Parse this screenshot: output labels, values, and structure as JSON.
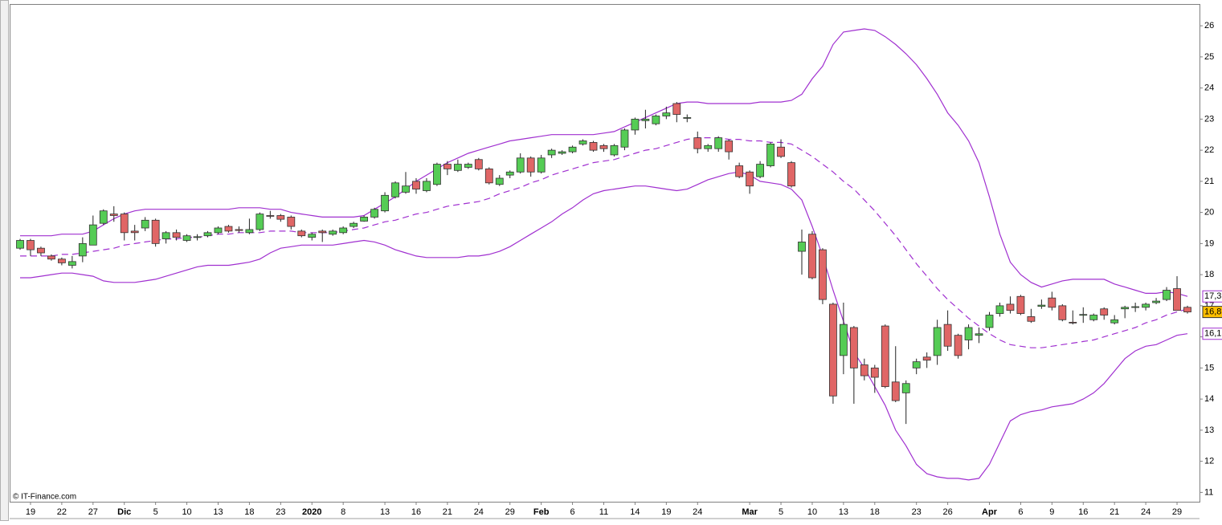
{
  "chart_data": {
    "type": "candlestick",
    "watermark": "© IT-Finance.com",
    "categories": [
      null,
      "19",
      null,
      null,
      "22",
      null,
      null,
      "27",
      null,
      null,
      "Dic",
      null,
      null,
      "5",
      null,
      null,
      "10",
      null,
      null,
      "13",
      null,
      null,
      "18",
      null,
      null,
      "23",
      null,
      null,
      "2020",
      null,
      null,
      "8",
      null,
      null,
      null,
      "13",
      null,
      null,
      "16",
      null,
      null,
      "21",
      null,
      null,
      "24",
      null,
      null,
      "29",
      null,
      null,
      "Feb",
      null,
      null,
      "6",
      null,
      null,
      "11",
      null,
      null,
      "14",
      null,
      null,
      "19",
      null,
      null,
      "24",
      null,
      null,
      null,
      null,
      "Mar",
      null,
      null,
      "5",
      null,
      null,
      "10",
      null,
      null,
      "13",
      null,
      null,
      "18",
      null,
      null,
      null,
      "23",
      null,
      null,
      "26",
      null,
      null,
      null,
      "Apr",
      null,
      null,
      "6",
      null,
      null,
      "9",
      null,
      null,
      "16",
      null,
      null,
      "21",
      null,
      null,
      "24",
      null,
      null,
      "29",
      null
    ],
    "open": [
      18.85,
      19.1,
      18.85,
      18.6,
      18.5,
      18.3,
      18.6,
      18.95,
      19.65,
      19.95,
      19.95,
      19.4,
      19.5,
      19.75,
      19.15,
      19.35,
      19.1,
      19.2,
      19.25,
      19.35,
      19.55,
      19.45,
      19.35,
      19.45,
      19.9,
      19.9,
      19.85,
      19.4,
      19.2,
      19.4,
      19.3,
      19.35,
      19.55,
      19.72,
      19.85,
      20.05,
      20.5,
      20.65,
      21.0,
      20.7,
      20.9,
      21.55,
      21.35,
      21.45,
      21.7,
      21.4,
      20.9,
      21.2,
      21.3,
      21.75,
      21.3,
      21.85,
      21.9,
      21.95,
      22.2,
      22.25,
      22.15,
      21.85,
      22.1,
      22.65,
      22.95,
      22.85,
      23.1,
      23.5,
      23.05,
      22.4,
      22.05,
      22.05,
      22.3,
      21.5,
      21.3,
      21.15,
      21.5,
      22.1,
      21.6,
      18.75,
      19.3,
      18.8,
      17.05,
      15.4,
      16.3,
      15.1,
      15.0,
      16.35,
      14.55,
      14.2,
      15.0,
      15.35,
      15.4,
      16.4,
      16.05,
      15.9,
      16.05,
      16.3,
      16.75,
      17.05,
      17.3,
      16.65,
      16.98,
      17.25,
      17.0,
      16.47,
      16.7,
      16.55,
      16.9,
      16.45,
      16.9,
      16.95,
      16.95,
      17.1,
      17.2,
      17.55,
      16.95
    ],
    "high": [
      19.15,
      19.15,
      18.9,
      18.65,
      18.55,
      18.6,
      19.2,
      19.9,
      20.1,
      20.2,
      20.0,
      19.6,
      19.85,
      19.8,
      19.4,
      19.45,
      19.3,
      19.3,
      19.4,
      19.55,
      19.6,
      19.55,
      19.8,
      20.0,
      20.05,
      19.95,
      19.9,
      19.45,
      19.35,
      19.45,
      19.45,
      19.55,
      19.7,
      19.9,
      20.15,
      20.65,
      21.0,
      21.3,
      21.1,
      21.1,
      21.6,
      21.65,
      21.7,
      21.6,
      21.75,
      21.45,
      21.2,
      21.35,
      21.9,
      21.8,
      21.85,
      22.05,
      22.0,
      22.15,
      22.35,
      22.3,
      22.2,
      22.2,
      22.7,
      23.05,
      23.3,
      23.15,
      23.4,
      23.55,
      23.15,
      22.6,
      22.2,
      22.45,
      22.35,
      21.6,
      21.35,
      21.65,
      22.25,
      22.35,
      21.65,
      19.45,
      19.4,
      18.85,
      17.1,
      17.1,
      16.35,
      15.3,
      15.1,
      16.4,
      15.7,
      14.6,
      15.3,
      15.5,
      16.55,
      16.85,
      16.1,
      16.4,
      16.3,
      16.8,
      17.1,
      17.3,
      17.35,
      16.9,
      17.2,
      17.45,
      17.05,
      16.85,
      16.95,
      16.75,
      16.95,
      16.7,
      17.0,
      17.1,
      17.1,
      17.25,
      17.6,
      17.95,
      17.0
    ],
    "low": [
      18.8,
      18.6,
      18.6,
      18.45,
      18.3,
      18.2,
      18.4,
      18.95,
      19.6,
      19.7,
      19.1,
      19.1,
      19.4,
      18.9,
      19.0,
      19.1,
      19.05,
      19.1,
      19.2,
      19.3,
      19.35,
      19.35,
      19.3,
      19.4,
      19.8,
      19.7,
      19.45,
      19.2,
      19.1,
      19.05,
      19.25,
      19.3,
      19.5,
      19.7,
      19.8,
      20.0,
      20.45,
      20.6,
      20.6,
      20.65,
      20.85,
      21.2,
      21.3,
      21.4,
      21.35,
      20.9,
      20.85,
      21.1,
      21.25,
      21.15,
      21.25,
      21.75,
      21.85,
      21.9,
      22.15,
      21.95,
      21.95,
      21.8,
      22.0,
      22.5,
      22.7,
      22.8,
      23.0,
      22.9,
      22.9,
      21.9,
      21.95,
      21.95,
      21.7,
      21.1,
      20.6,
      21.1,
      21.45,
      21.75,
      20.8,
      18.0,
      17.85,
      17.05,
      13.85,
      14.8,
      13.85,
      14.6,
      14.2,
      14.35,
      13.9,
      13.2,
      14.8,
      15.0,
      15.1,
      15.55,
      15.3,
      15.6,
      15.8,
      16.2,
      16.65,
      16.75,
      16.7,
      16.45,
      16.9,
      16.85,
      16.5,
      16.4,
      16.45,
      16.5,
      16.55,
      16.4,
      16.6,
      16.8,
      16.85,
      17.05,
      17.15,
      16.85,
      16.75
    ],
    "close": [
      19.1,
      18.8,
      18.7,
      18.5,
      18.38,
      18.42,
      19.0,
      19.6,
      20.05,
      19.9,
      19.35,
      19.35,
      19.75,
      19.0,
      19.35,
      19.2,
      19.25,
      19.22,
      19.35,
      19.5,
      19.4,
      19.42,
      19.45,
      19.95,
      19.88,
      19.78,
      19.55,
      19.25,
      19.3,
      19.35,
      19.4,
      19.5,
      19.65,
      19.85,
      20.1,
      20.55,
      20.95,
      20.85,
      20.75,
      21.0,
      21.55,
      21.4,
      21.55,
      21.55,
      21.4,
      20.95,
      21.1,
      21.3,
      21.75,
      21.3,
      21.75,
      22.0,
      21.95,
      22.1,
      22.3,
      22.0,
      22.05,
      22.15,
      22.65,
      23.0,
      23.0,
      23.1,
      23.2,
      23.15,
      23.05,
      22.05,
      22.15,
      22.4,
      21.95,
      21.15,
      20.85,
      21.55,
      22.2,
      21.8,
      20.85,
      19.05,
      17.9,
      17.2,
      14.1,
      16.4,
      15.0,
      14.75,
      14.7,
      14.4,
      13.95,
      14.5,
      15.2,
      15.25,
      16.3,
      15.7,
      15.4,
      16.3,
      16.1,
      16.7,
      17.0,
      16.85,
      16.75,
      16.5,
      17.02,
      16.95,
      16.55,
      16.45,
      16.72,
      16.7,
      16.7,
      16.55,
      16.95,
      16.97,
      17.05,
      17.15,
      17.5,
      16.85,
      16.8
    ],
    "close_last_label": "16,8",
    "up_color": "#55cc55",
    "down_color": "#e06666",
    "bands": [
      {
        "color": "#a030d0",
        "dash": false,
        "last_label": "17,3",
        "values": [
          19.25,
          19.25,
          19.25,
          19.25,
          19.3,
          19.3,
          19.3,
          19.4,
          19.6,
          19.8,
          19.95,
          20.05,
          20.1,
          20.1,
          20.1,
          20.1,
          20.1,
          20.1,
          20.1,
          20.1,
          20.1,
          20.15,
          20.15,
          20.15,
          20.1,
          20.1,
          20.0,
          19.95,
          19.9,
          19.85,
          19.85,
          19.85,
          19.85,
          19.9,
          20.1,
          20.3,
          20.5,
          20.75,
          21.0,
          21.2,
          21.4,
          21.6,
          21.75,
          21.9,
          22.0,
          22.1,
          22.2,
          22.3,
          22.35,
          22.4,
          22.45,
          22.5,
          22.5,
          22.5,
          22.5,
          22.5,
          22.55,
          22.6,
          22.75,
          22.9,
          23.05,
          23.2,
          23.35,
          23.5,
          23.55,
          23.55,
          23.5,
          23.5,
          23.5,
          23.5,
          23.5,
          23.55,
          23.55,
          23.55,
          23.6,
          23.8,
          24.3,
          24.7,
          25.4,
          25.8,
          25.85,
          25.9,
          25.85,
          25.65,
          25.4,
          25.1,
          24.75,
          24.3,
          23.8,
          23.2,
          22.8,
          22.3,
          21.6,
          20.5,
          19.3,
          18.4,
          18.0,
          17.75,
          17.6,
          17.7,
          17.8,
          17.85,
          17.85,
          17.85,
          17.85,
          17.7,
          17.6,
          17.5,
          17.4,
          17.4,
          17.45,
          17.4,
          17.3
        ]
      },
      {
        "color": "#a030d0",
        "dash": true,
        "values": [
          18.6,
          18.6,
          18.6,
          18.6,
          18.65,
          18.65,
          18.7,
          18.75,
          18.8,
          18.85,
          18.95,
          19.0,
          19.05,
          19.1,
          19.15,
          19.15,
          19.2,
          19.2,
          19.25,
          19.3,
          19.3,
          19.35,
          19.35,
          19.35,
          19.4,
          19.4,
          19.4,
          19.35,
          19.35,
          19.35,
          19.35,
          19.4,
          19.45,
          19.5,
          19.6,
          19.7,
          19.75,
          19.85,
          19.95,
          20.0,
          20.1,
          20.2,
          20.25,
          20.3,
          20.35,
          20.45,
          20.6,
          20.7,
          20.8,
          20.95,
          21.05,
          21.2,
          21.3,
          21.4,
          21.5,
          21.6,
          21.65,
          21.7,
          21.8,
          21.9,
          22.0,
          22.05,
          22.15,
          22.25,
          22.35,
          22.4,
          22.4,
          22.4,
          22.35,
          22.35,
          22.3,
          22.3,
          22.25,
          22.25,
          22.2,
          22.0,
          21.8,
          21.55,
          21.3,
          21.0,
          20.75,
          20.4,
          20.05,
          19.65,
          19.25,
          18.8,
          18.35,
          17.95,
          17.55,
          17.2,
          16.9,
          16.6,
          16.35,
          16.1,
          15.9,
          15.75,
          15.7,
          15.65,
          15.65,
          15.7,
          15.75,
          15.8,
          15.85,
          15.9,
          16.0,
          16.1,
          16.2,
          16.3,
          16.45,
          16.55,
          16.7,
          16.8,
          16.9
        ]
      },
      {
        "color": "#a030d0",
        "dash": false,
        "last_label": "16,1",
        "values": [
          17.9,
          17.9,
          17.95,
          18.0,
          18.05,
          18.05,
          18.0,
          17.95,
          17.8,
          17.75,
          17.75,
          17.75,
          17.8,
          17.85,
          17.95,
          18.05,
          18.15,
          18.25,
          18.3,
          18.3,
          18.3,
          18.35,
          18.4,
          18.5,
          18.7,
          18.85,
          18.9,
          18.95,
          18.95,
          18.95,
          18.95,
          19.0,
          19.05,
          19.1,
          19.05,
          18.95,
          18.8,
          18.7,
          18.6,
          18.55,
          18.55,
          18.55,
          18.55,
          18.6,
          18.6,
          18.65,
          18.75,
          18.9,
          19.1,
          19.3,
          19.5,
          19.7,
          19.95,
          20.15,
          20.4,
          20.6,
          20.7,
          20.75,
          20.8,
          20.85,
          20.85,
          20.8,
          20.75,
          20.7,
          20.75,
          20.9,
          21.05,
          21.15,
          21.25,
          21.3,
          21.2,
          21.0,
          20.95,
          20.9,
          20.75,
          20.4,
          19.55,
          18.6,
          17.5,
          16.5,
          15.5,
          15.0,
          14.4,
          13.8,
          13.0,
          12.5,
          11.9,
          11.6,
          11.5,
          11.45,
          11.45,
          11.4,
          11.45,
          11.9,
          12.6,
          13.3,
          13.5,
          13.6,
          13.65,
          13.75,
          13.8,
          13.85,
          14.0,
          14.2,
          14.5,
          14.9,
          15.3,
          15.55,
          15.7,
          15.75,
          15.9,
          16.05,
          16.1
        ]
      }
    ],
    "ylim": [
      10.7,
      26.7
    ],
    "yticks": [
      11,
      12,
      13,
      14,
      15,
      16,
      17,
      18,
      19,
      20,
      21,
      22,
      23,
      24,
      25,
      26
    ]
  }
}
